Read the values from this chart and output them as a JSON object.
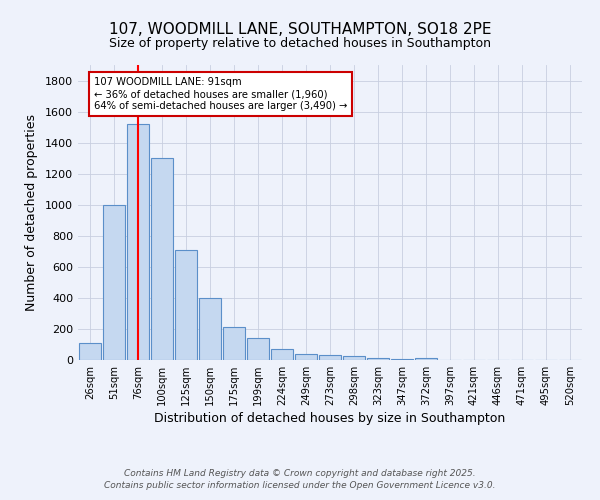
{
  "title": "107, WOODMILL LANE, SOUTHAMPTON, SO18 2PE",
  "subtitle": "Size of property relative to detached houses in Southampton",
  "xlabel": "Distribution of detached houses by size in Southampton",
  "ylabel": "Number of detached properties",
  "categories": [
    "26sqm",
    "51sqm",
    "76sqm",
    "100sqm",
    "125sqm",
    "150sqm",
    "175sqm",
    "199sqm",
    "224sqm",
    "249sqm",
    "273sqm",
    "298sqm",
    "323sqm",
    "347sqm",
    "372sqm",
    "397sqm",
    "421sqm",
    "446sqm",
    "471sqm",
    "495sqm",
    "520sqm"
  ],
  "values": [
    110,
    1000,
    1520,
    1300,
    710,
    400,
    210,
    140,
    70,
    40,
    35,
    25,
    12,
    8,
    14,
    0,
    0,
    0,
    0,
    0,
    0
  ],
  "bar_color": "#c5d8f0",
  "bar_edge_color": "#5b8fc9",
  "red_line_x": 2,
  "annotation_title": "107 WOODMILL LANE: 91sqm",
  "annotation_line2": "← 36% of detached houses are smaller (1,960)",
  "annotation_line3": "64% of semi-detached houses are larger (3,490) →",
  "annotation_box_color": "#ffffff",
  "annotation_box_edge": "#cc0000",
  "bg_color": "#eef2fb",
  "grid_color": "#c8cfe0",
  "footer_line1": "Contains HM Land Registry data © Crown copyright and database right 2025.",
  "footer_line2": "Contains public sector information licensed under the Open Government Licence v3.0.",
  "ylim": [
    0,
    1900
  ],
  "yticks": [
    0,
    200,
    400,
    600,
    800,
    1000,
    1200,
    1400,
    1600,
    1800
  ]
}
